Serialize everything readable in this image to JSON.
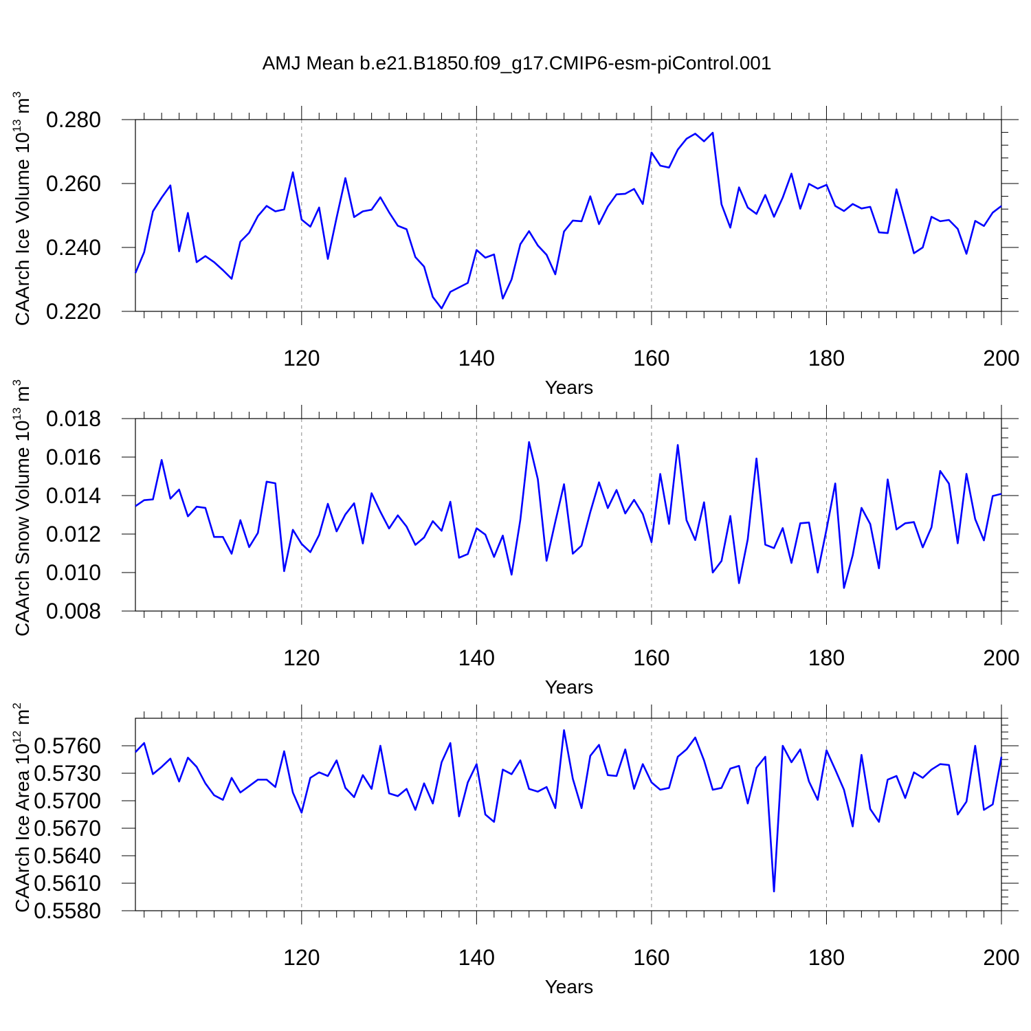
{
  "title": "AMJ Mean b.e21.B1850.f09_g17.CMIP6-esm-piControl.001",
  "line_color": "#0000ff",
  "chart_data": [
    {
      "type": "line",
      "name": "ice-volume",
      "ylabel": "CAArch Ice Volume 10",
      "ylabel_exp": "13",
      "ylabel_unit": " m",
      "ylabel_unit_exp": "3",
      "xlabel": "Years",
      "xlim": [
        101,
        200
      ],
      "ylim": [
        0.22,
        0.28
      ],
      "xticks": [
        120,
        140,
        160,
        180,
        200
      ],
      "xtick_labels": [
        "120",
        "140",
        "160",
        "180",
        "200"
      ],
      "yticks": [
        0.22,
        0.24,
        0.26,
        0.28
      ],
      "ytick_labels": [
        "0.220",
        "0.240",
        "0.260",
        "0.280"
      ],
      "yminor": 0.004,
      "x_start": 101,
      "values": [
        0.232,
        0.2385,
        0.2513,
        0.2556,
        0.2594,
        0.2388,
        0.2508,
        0.2354,
        0.2373,
        0.2354,
        0.2329,
        0.2302,
        0.2418,
        0.2446,
        0.2498,
        0.253,
        0.2513,
        0.2519,
        0.2635,
        0.2487,
        0.2465,
        0.2525,
        0.2364,
        0.2493,
        0.2617,
        0.2495,
        0.2513,
        0.2518,
        0.2557,
        0.251,
        0.2468,
        0.2457,
        0.237,
        0.234,
        0.2245,
        0.2209,
        0.2261,
        0.2275,
        0.2289,
        0.2392,
        0.2368,
        0.2378,
        0.224,
        0.23,
        0.241,
        0.2451,
        0.2406,
        0.2377,
        0.2316,
        0.245,
        0.2484,
        0.2482,
        0.256,
        0.2473,
        0.2528,
        0.2566,
        0.2568,
        0.2583,
        0.2536,
        0.2697,
        0.2656,
        0.265,
        0.2706,
        0.274,
        0.2756,
        0.2732,
        0.2759,
        0.2535,
        0.2462,
        0.2588,
        0.2525,
        0.2505,
        0.2564,
        0.2496,
        0.2556,
        0.2631,
        0.2521,
        0.2599,
        0.2584,
        0.2596,
        0.253,
        0.2514,
        0.2536,
        0.2522,
        0.2527,
        0.2447,
        0.2445,
        0.2582,
        0.2482,
        0.2382,
        0.24,
        0.2496,
        0.2482,
        0.2486,
        0.2458,
        0.238,
        0.2483,
        0.2467,
        0.2509,
        0.253
      ]
    },
    {
      "type": "line",
      "name": "snow-volume",
      "ylabel": "CAArch Snow Volume 10",
      "ylabel_exp": "13",
      "ylabel_unit": " m",
      "ylabel_unit_exp": "3",
      "xlabel": "Years",
      "xlim": [
        101,
        200
      ],
      "ylim": [
        0.008,
        0.018
      ],
      "xticks": [
        120,
        140,
        160,
        180,
        200
      ],
      "xtick_labels": [
        "120",
        "140",
        "160",
        "180",
        "200"
      ],
      "yticks": [
        0.008,
        0.01,
        0.012,
        0.014,
        0.016,
        0.018
      ],
      "ytick_labels": [
        "0.008",
        "0.010",
        "0.012",
        "0.014",
        "0.016",
        "0.018"
      ],
      "yminor": 0.0005,
      "x_start": 101,
      "values": [
        0.01345,
        0.01376,
        0.0138,
        0.01585,
        0.01384,
        0.01431,
        0.01292,
        0.01342,
        0.01336,
        0.01185,
        0.01185,
        0.01098,
        0.01272,
        0.01132,
        0.01206,
        0.01472,
        0.01464,
        0.01007,
        0.01222,
        0.01149,
        0.01106,
        0.01195,
        0.01357,
        0.01214,
        0.01302,
        0.0136,
        0.01151,
        0.01412,
        0.01316,
        0.01229,
        0.01297,
        0.01239,
        0.01144,
        0.01182,
        0.01267,
        0.01217,
        0.01368,
        0.01077,
        0.01096,
        0.0123,
        0.01197,
        0.01081,
        0.01192,
        0.00989,
        0.01273,
        0.01678,
        0.01485,
        0.01061,
        0.01264,
        0.01459,
        0.01098,
        0.0114,
        0.01314,
        0.01469,
        0.01335,
        0.01429,
        0.01307,
        0.01378,
        0.01304,
        0.01158,
        0.01512,
        0.01253,
        0.01663,
        0.01272,
        0.01169,
        0.01365,
        0.01,
        0.0106,
        0.01294,
        0.00945,
        0.01173,
        0.01593,
        0.01145,
        0.01127,
        0.01231,
        0.0105,
        0.01256,
        0.0126,
        0.01,
        0.01224,
        0.01463,
        0.0092,
        0.0109,
        0.01336,
        0.01252,
        0.01022,
        0.01484,
        0.01224,
        0.01256,
        0.01262,
        0.01131,
        0.01235,
        0.01528,
        0.01462,
        0.01152,
        0.01513,
        0.01278,
        0.01167,
        0.01398,
        0.01409
      ]
    },
    {
      "type": "line",
      "name": "ice-area",
      "ylabel": "CAArch Ice Area 10",
      "ylabel_exp": "12",
      "ylabel_unit": " m",
      "ylabel_unit_exp": "2",
      "xlabel": "Years",
      "xlim": [
        101,
        200
      ],
      "ylim": [
        0.558,
        0.579
      ],
      "xticks": [
        120,
        140,
        160,
        180,
        200
      ],
      "xtick_labels": [
        "120",
        "140",
        "160",
        "180",
        "200"
      ],
      "yticks": [
        0.558,
        0.561,
        0.564,
        0.567,
        0.57,
        0.573,
        0.576
      ],
      "ytick_labels": [
        "0.5580",
        "0.5610",
        "0.5640",
        "0.5670",
        "0.5700",
        "0.5730",
        "0.5760"
      ],
      "yminor": 0.00075,
      "x_start": 101,
      "values": [
        0.5753,
        0.5763,
        0.5729,
        0.5737,
        0.5746,
        0.5721,
        0.5747,
        0.5737,
        0.5719,
        0.5706,
        0.5701,
        0.5725,
        0.5709,
        0.5716,
        0.5723,
        0.5723,
        0.5715,
        0.5754,
        0.5709,
        0.5687,
        0.5725,
        0.5731,
        0.5727,
        0.5744,
        0.5714,
        0.5704,
        0.5728,
        0.5713,
        0.576,
        0.5708,
        0.5705,
        0.5713,
        0.569,
        0.5719,
        0.5697,
        0.5742,
        0.5763,
        0.5683,
        0.572,
        0.574,
        0.5685,
        0.5677,
        0.5734,
        0.5729,
        0.5744,
        0.5713,
        0.571,
        0.5715,
        0.5692,
        0.5777,
        0.5724,
        0.5692,
        0.5749,
        0.5761,
        0.5728,
        0.5727,
        0.5756,
        0.5713,
        0.574,
        0.572,
        0.5712,
        0.5714,
        0.5748,
        0.5756,
        0.5769,
        0.5744,
        0.5712,
        0.5714,
        0.5735,
        0.5738,
        0.5697,
        0.5736,
        0.5748,
        0.5601,
        0.576,
        0.5742,
        0.5756,
        0.5721,
        0.5701,
        0.5755,
        0.5734,
        0.5712,
        0.5672,
        0.575,
        0.5691,
        0.5677,
        0.5723,
        0.5727,
        0.5703,
        0.5731,
        0.5725,
        0.5734,
        0.574,
        0.5739,
        0.5685,
        0.5699,
        0.576,
        0.569,
        0.5696,
        0.5748
      ]
    }
  ]
}
